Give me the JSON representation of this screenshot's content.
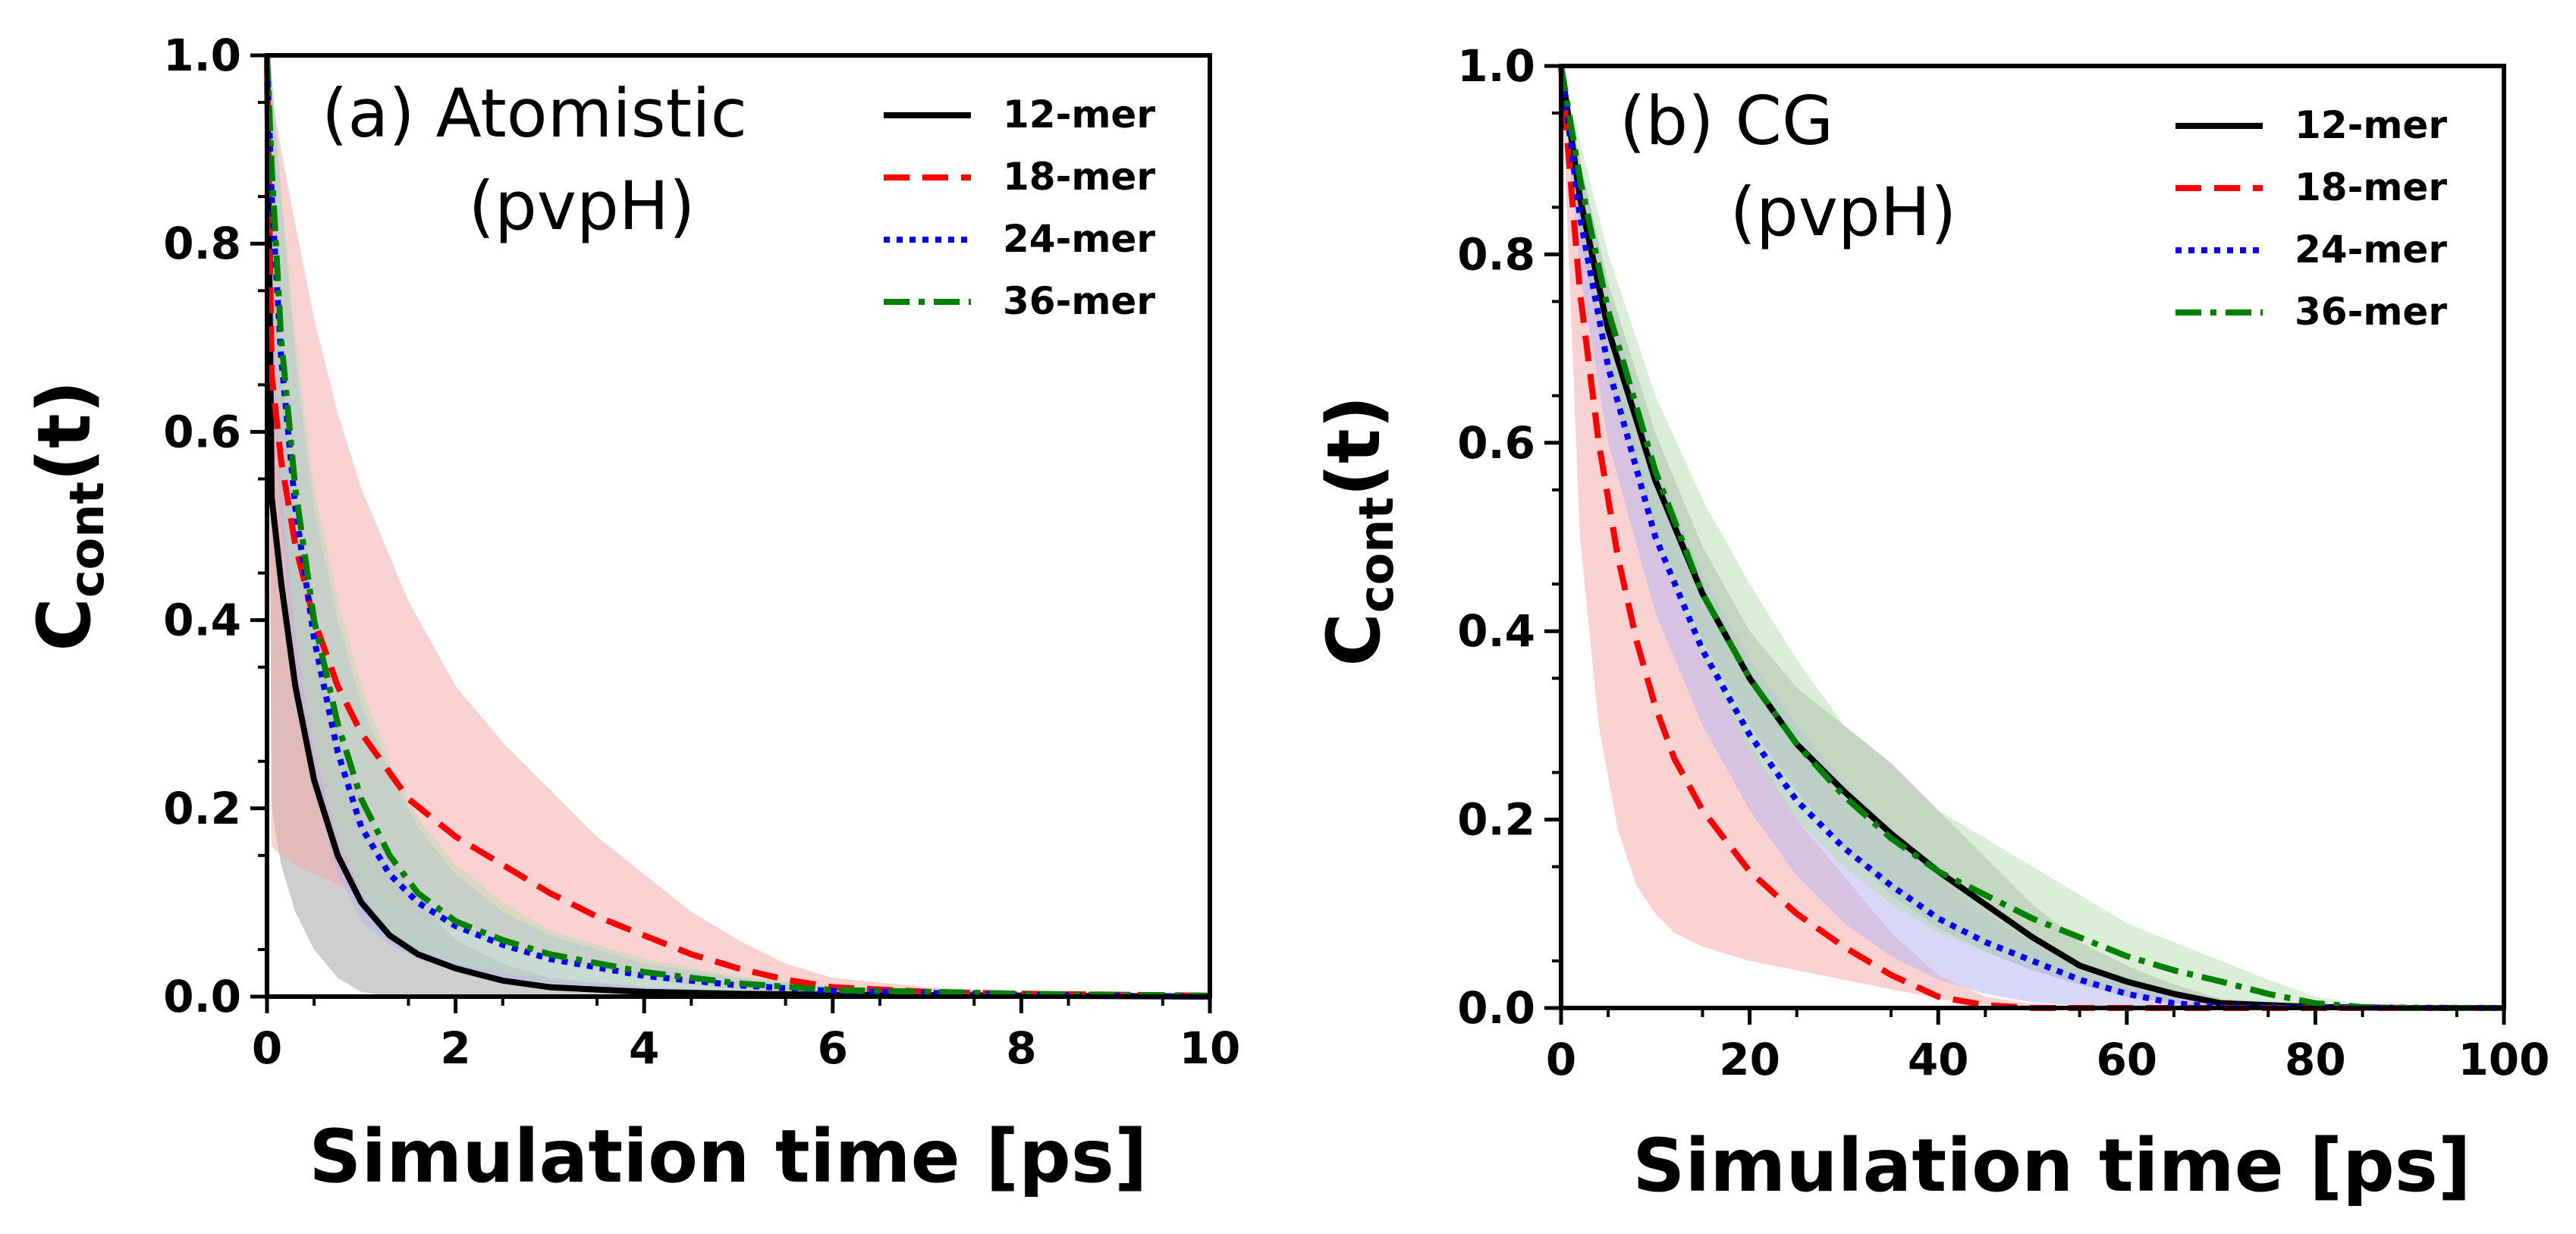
{
  "chart_data": [
    {
      "type": "line",
      "title": [
        "(a) Atomistic",
        "(pvpH)"
      ],
      "xlabel": "Simulation time [ps]",
      "ylabel": {
        "main": "C",
        "sub": "cont",
        "tail": "(t)"
      },
      "xlim": [
        0,
        10
      ],
      "ylim": [
        0,
        1
      ],
      "xticks": [
        "0",
        "2",
        "4",
        "6",
        "8",
        "10"
      ],
      "yticks": [
        "0.0",
        "0.2",
        "0.4",
        "0.6",
        "0.8",
        "1.0"
      ],
      "legend_position": "top-right",
      "series": [
        {
          "name": "12-mer",
          "color": "#000000",
          "dash": "solid",
          "band_color": "#9e9e9e",
          "x": [
            0,
            0.05,
            0.15,
            0.3,
            0.5,
            0.75,
            1.0,
            1.3,
            1.6,
            2.0,
            2.5,
            3.0,
            4.0,
            5.0,
            6.0,
            8.0,
            10.0
          ],
          "y": [
            1.0,
            0.53,
            0.44,
            0.33,
            0.23,
            0.15,
            0.1,
            0.065,
            0.045,
            0.03,
            0.017,
            0.01,
            0.005,
            0.003,
            0.002,
            0.001,
            0.0
          ],
          "upper": [
            1.0,
            0.82,
            0.66,
            0.52,
            0.4,
            0.29,
            0.21,
            0.15,
            0.1,
            0.06,
            0.035,
            0.02,
            0.01,
            0.006,
            0.004,
            0.002,
            0.001
          ],
          "lower": [
            1.0,
            0.2,
            0.14,
            0.09,
            0.05,
            0.02,
            0.005,
            0.0,
            0.0,
            0.0,
            0.0,
            0.0,
            0.0,
            0.0,
            0.0,
            0.0,
            0.0
          ]
        },
        {
          "name": "18-mer",
          "color": "#ff0000",
          "dash": "dashed",
          "band_color": "#f6a5a5",
          "x": [
            0,
            0.05,
            0.15,
            0.3,
            0.5,
            0.75,
            1.0,
            1.5,
            2.0,
            2.5,
            3.0,
            3.5,
            4.0,
            4.5,
            5.0,
            5.5,
            6.0,
            7.0,
            8.0,
            10.0
          ],
          "y": [
            1.0,
            0.66,
            0.57,
            0.48,
            0.4,
            0.33,
            0.28,
            0.21,
            0.17,
            0.14,
            0.11,
            0.085,
            0.065,
            0.045,
            0.03,
            0.018,
            0.01,
            0.005,
            0.003,
            0.001
          ],
          "upper": [
            1.0,
            0.96,
            0.9,
            0.82,
            0.72,
            0.62,
            0.54,
            0.42,
            0.33,
            0.27,
            0.22,
            0.17,
            0.13,
            0.09,
            0.06,
            0.035,
            0.02,
            0.01,
            0.005,
            0.002
          ],
          "lower": [
            1.0,
            0.16,
            0.15,
            0.14,
            0.13,
            0.12,
            0.11,
            0.09,
            0.07,
            0.055,
            0.04,
            0.03,
            0.02,
            0.012,
            0.007,
            0.004,
            0.002,
            0.001,
            0.0,
            0.0
          ]
        },
        {
          "name": "24-mer",
          "color": "#0000ff",
          "dash": "dotted",
          "band_color": "#b4b4f0",
          "x": [
            0,
            0.05,
            0.15,
            0.3,
            0.5,
            0.75,
            1.0,
            1.3,
            1.6,
            2.0,
            2.5,
            3.0,
            4.0,
            5.0,
            6.0,
            8.0,
            10.0
          ],
          "y": [
            1.0,
            0.85,
            0.68,
            0.52,
            0.38,
            0.26,
            0.18,
            0.13,
            0.1,
            0.075,
            0.055,
            0.04,
            0.022,
            0.012,
            0.006,
            0.002,
            0.0
          ],
          "upper": [
            1.0,
            0.98,
            0.85,
            0.68,
            0.52,
            0.4,
            0.31,
            0.24,
            0.18,
            0.13,
            0.09,
            0.065,
            0.035,
            0.02,
            0.01,
            0.004,
            0.001
          ],
          "lower": [
            1.0,
            0.7,
            0.5,
            0.34,
            0.22,
            0.13,
            0.08,
            0.055,
            0.04,
            0.03,
            0.02,
            0.015,
            0.008,
            0.004,
            0.002,
            0.0,
            0.0
          ]
        },
        {
          "name": "36-mer",
          "color": "#008000",
          "dash": "dashdot",
          "band_color": "#b8ddb0",
          "x": [
            0,
            0.05,
            0.15,
            0.3,
            0.5,
            0.75,
            1.0,
            1.3,
            1.6,
            2.0,
            2.5,
            3.0,
            4.0,
            5.0,
            6.0,
            8.0,
            10.0
          ],
          "y": [
            1.0,
            0.88,
            0.7,
            0.54,
            0.4,
            0.29,
            0.21,
            0.15,
            0.11,
            0.08,
            0.06,
            0.045,
            0.026,
            0.014,
            0.007,
            0.003,
            0.001
          ],
          "upper": [
            1.0,
            0.98,
            0.86,
            0.7,
            0.54,
            0.42,
            0.33,
            0.25,
            0.19,
            0.14,
            0.1,
            0.07,
            0.04,
            0.022,
            0.012,
            0.005,
            0.002
          ],
          "lower": [
            1.0,
            0.75,
            0.55,
            0.38,
            0.26,
            0.17,
            0.11,
            0.07,
            0.05,
            0.035,
            0.025,
            0.018,
            0.01,
            0.005,
            0.002,
            0.0,
            0.0
          ]
        }
      ]
    },
    {
      "type": "line",
      "title": [
        "(b) CG",
        "(pvpH)"
      ],
      "xlabel": "Simulation time [ps]",
      "ylabel": {
        "main": "C",
        "sub": "cont",
        "tail": "(t)"
      },
      "xlim": [
        0,
        100
      ],
      "ylim": [
        0,
        1
      ],
      "xticks": [
        "0",
        "20",
        "40",
        "60",
        "80",
        "100"
      ],
      "yticks": [
        "0.0",
        "0.2",
        "0.4",
        "0.6",
        "0.8",
        "1.0"
      ],
      "legend_position": "top-right",
      "series": [
        {
          "name": "12-mer",
          "color": "#000000",
          "dash": "solid",
          "band_color": "#9e9e9e",
          "x": [
            0,
            2,
            5,
            10,
            15,
            20,
            25,
            30,
            35,
            40,
            45,
            50,
            55,
            60,
            65,
            70,
            80,
            90,
            100
          ],
          "y": [
            1.0,
            0.86,
            0.72,
            0.56,
            0.44,
            0.35,
            0.28,
            0.23,
            0.185,
            0.145,
            0.11,
            0.075,
            0.045,
            0.028,
            0.015,
            0.005,
            0.001,
            0.0,
            0.0
          ],
          "upper": [
            1.0,
            0.9,
            0.77,
            0.61,
            0.49,
            0.4,
            0.34,
            0.3,
            0.26,
            0.21,
            0.16,
            0.11,
            0.07,
            0.045,
            0.025,
            0.01,
            0.002,
            0.0,
            0.0
          ],
          "lower": [
            1.0,
            0.82,
            0.67,
            0.51,
            0.39,
            0.3,
            0.23,
            0.17,
            0.12,
            0.085,
            0.06,
            0.04,
            0.025,
            0.012,
            0.005,
            0.0,
            0.0,
            0.0,
            0.0
          ]
        },
        {
          "name": "18-mer",
          "color": "#ff0000",
          "dash": "dashed",
          "band_color": "#f6a5a5",
          "x": [
            0,
            2,
            4,
            6,
            8,
            10,
            12,
            15,
            20,
            25,
            30,
            35,
            40,
            45,
            50,
            60,
            70,
            100
          ],
          "y": [
            1.0,
            0.76,
            0.6,
            0.48,
            0.39,
            0.32,
            0.265,
            0.21,
            0.145,
            0.1,
            0.065,
            0.035,
            0.012,
            0.003,
            0.0,
            0.0,
            0.0,
            0.0
          ],
          "upper": [
            1.0,
            0.86,
            0.76,
            0.67,
            0.59,
            0.52,
            0.46,
            0.38,
            0.28,
            0.2,
            0.14,
            0.08,
            0.035,
            0.012,
            0.004,
            0.0,
            0.0,
            0.0
          ],
          "lower": [
            1.0,
            0.5,
            0.3,
            0.19,
            0.13,
            0.1,
            0.08,
            0.065,
            0.05,
            0.04,
            0.03,
            0.02,
            0.01,
            0.003,
            0.0,
            0.0,
            0.0,
            0.0
          ]
        },
        {
          "name": "24-mer",
          "color": "#0000ff",
          "dash": "dotted",
          "band_color": "#b4b4f0",
          "x": [
            0,
            2,
            5,
            10,
            15,
            20,
            25,
            30,
            35,
            40,
            45,
            50,
            55,
            60,
            65,
            70,
            100
          ],
          "y": [
            1.0,
            0.84,
            0.68,
            0.5,
            0.38,
            0.29,
            0.22,
            0.17,
            0.13,
            0.095,
            0.07,
            0.05,
            0.03,
            0.015,
            0.005,
            0.001,
            0.0
          ],
          "upper": [
            1.0,
            0.9,
            0.76,
            0.58,
            0.46,
            0.37,
            0.3,
            0.24,
            0.19,
            0.14,
            0.1,
            0.07,
            0.045,
            0.025,
            0.01,
            0.002,
            0.0
          ],
          "lower": [
            1.0,
            0.78,
            0.6,
            0.42,
            0.3,
            0.21,
            0.14,
            0.09,
            0.055,
            0.03,
            0.015,
            0.006,
            0.002,
            0.0,
            0.0,
            0.0,
            0.0
          ]
        },
        {
          "name": "36-mer",
          "color": "#008000",
          "dash": "dashdot",
          "band_color": "#b8ddb0",
          "x": [
            0,
            2,
            5,
            10,
            15,
            20,
            25,
            30,
            35,
            40,
            45,
            50,
            55,
            60,
            65,
            70,
            75,
            80,
            85,
            90,
            100
          ],
          "y": [
            1.0,
            0.88,
            0.74,
            0.57,
            0.44,
            0.35,
            0.28,
            0.225,
            0.18,
            0.145,
            0.12,
            0.095,
            0.075,
            0.055,
            0.04,
            0.028,
            0.015,
            0.005,
            0.001,
            0.0,
            0.0
          ],
          "upper": [
            1.0,
            0.92,
            0.8,
            0.65,
            0.54,
            0.45,
            0.37,
            0.3,
            0.25,
            0.21,
            0.18,
            0.15,
            0.12,
            0.09,
            0.07,
            0.05,
            0.03,
            0.012,
            0.004,
            0.0,
            0.0
          ],
          "lower": [
            1.0,
            0.84,
            0.68,
            0.5,
            0.37,
            0.27,
            0.2,
            0.15,
            0.11,
            0.08,
            0.06,
            0.045,
            0.03,
            0.02,
            0.012,
            0.006,
            0.002,
            0.0,
            0.0,
            0.0,
            0.0
          ]
        }
      ]
    }
  ]
}
